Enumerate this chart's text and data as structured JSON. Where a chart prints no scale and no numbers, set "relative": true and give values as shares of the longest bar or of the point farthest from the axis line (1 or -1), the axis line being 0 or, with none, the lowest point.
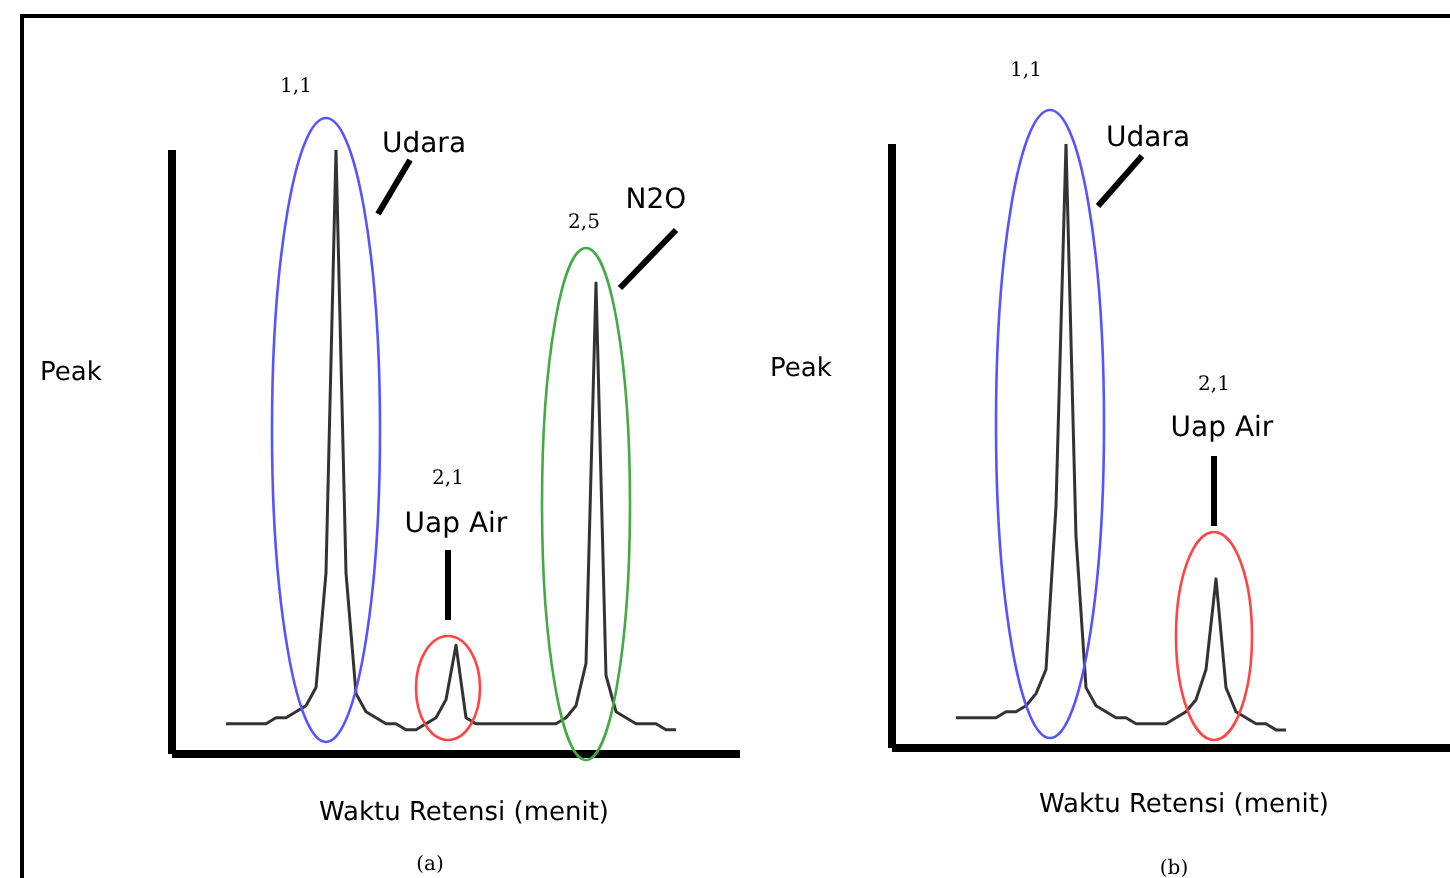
{
  "chart_data": [
    {
      "type": "line",
      "title": "(a)",
      "xlabel": "Waktu Retensi (menit)",
      "ylabel": "Peak",
      "relative": true,
      "color": "#333333",
      "marker": "none",
      "grid": false,
      "categories": [
        null,
        null,
        null,
        null,
        null,
        null,
        null,
        null,
        null,
        null,
        null,
        null,
        null,
        null,
        null,
        null,
        null,
        null,
        null,
        null,
        null,
        null,
        null,
        null,
        null,
        null,
        null,
        null,
        null,
        null,
        null,
        null,
        null,
        null,
        null,
        null,
        null,
        null,
        null,
        null,
        null,
        null,
        null,
        null,
        null,
        null,
        null,
        null,
        null,
        null,
        null,
        null,
        null,
        null,
        null,
        null,
        null
      ],
      "values": [
        null,
        null,
        null,
        null,
        null,
        0.05,
        0.05,
        0.05,
        0.05,
        0.05,
        0.06,
        0.06,
        0.07,
        0.08,
        0.11,
        0.3,
        1,
        0.3,
        0.1,
        0.07,
        0.06,
        0.05,
        0.05,
        0.04,
        0.04,
        0.05,
        0.06,
        0.09,
        0.18,
        0.06,
        0.05,
        0.05,
        0.05,
        0.05,
        0.05,
        0.05,
        0.05,
        0.05,
        0.05,
        0.06,
        0.08,
        0.15,
        0.78,
        0.13,
        0.07,
        0.06,
        0.05,
        0.05,
        0.05,
        0.04,
        0.04,
        null,
        null,
        null,
        null,
        null,
        null
      ],
      "annotations": [
        "1,1",
        "Udara",
        "2,1",
        "Uap Air",
        "2,5",
        "N2O"
      ]
    },
    {
      "type": "line",
      "title": "(b)",
      "xlabel": "Waktu Retensi (menit)",
      "ylabel": "Peak",
      "relative": true,
      "color": "#333333",
      "marker": "none",
      "grid": false,
      "categories": [
        null,
        null,
        null,
        null,
        null,
        null,
        null,
        null,
        null,
        null,
        null,
        null,
        null,
        null,
        null,
        null,
        null,
        null,
        null,
        null,
        null,
        null,
        null,
        null,
        null,
        null,
        null,
        null,
        null,
        null,
        null,
        null,
        null,
        null,
        null,
        null,
        null,
        null,
        null,
        null,
        null,
        null,
        null,
        null,
        null,
        null,
        null,
        null,
        null,
        null,
        null,
        null,
        null,
        null,
        null,
        null
      ],
      "values": [
        null,
        null,
        null,
        null,
        null,
        null,
        0.05,
        0.05,
        0.05,
        0.05,
        0.05,
        0.06,
        0.06,
        0.07,
        0.09,
        0.13,
        0.4,
        1,
        0.35,
        0.1,
        0.07,
        0.06,
        0.05,
        0.05,
        0.04,
        0.04,
        0.04,
        0.04,
        0.05,
        0.06,
        0.08,
        0.13,
        0.28,
        0.1,
        0.06,
        0.05,
        0.04,
        0.04,
        0.03,
        0.03,
        null,
        null,
        null,
        null,
        null,
        null,
        null,
        null,
        null,
        null,
        null,
        null,
        null,
        null,
        null,
        null
      ],
      "annotations": [
        "1,1",
        "Udara",
        "2,1",
        "Uap Air"
      ]
    }
  ]
}
